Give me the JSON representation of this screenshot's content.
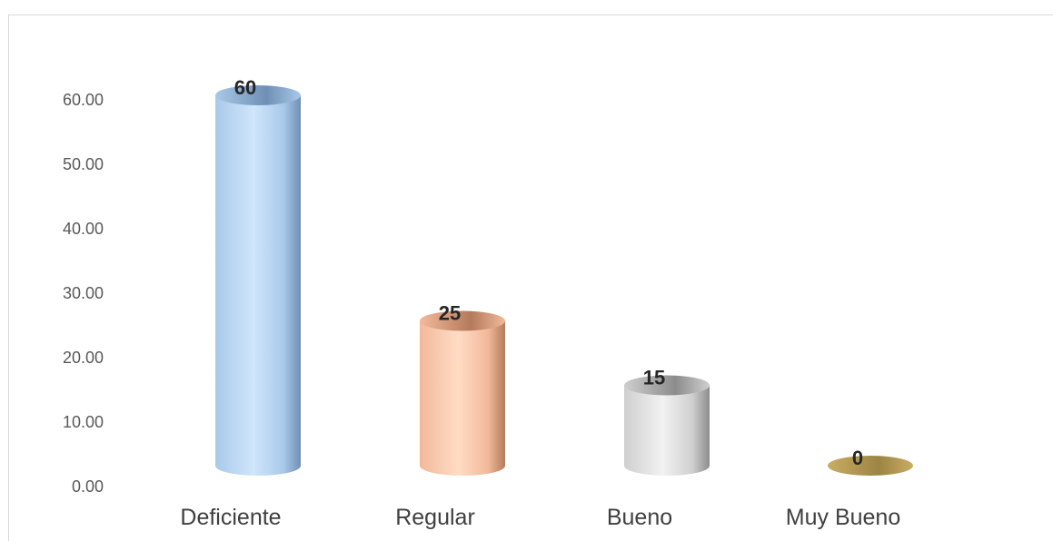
{
  "chart_data": {
    "type": "bar",
    "title": "",
    "xlabel": "",
    "ylabel": "",
    "categories": [
      "Deficiente",
      "Regular",
      "Bueno",
      "Muy Bueno"
    ],
    "values": [
      60,
      25,
      15,
      0
    ],
    "data_labels": [
      "60",
      "25",
      "15",
      "0"
    ],
    "yticks": [
      "0.00",
      "10.00",
      "20.00",
      "30.00",
      "40.00",
      "50.00",
      "60.00"
    ],
    "ylim": [
      0,
      70
    ],
    "grid": false,
    "legend": "none",
    "bar_style": "3d-cylinder",
    "colors": [
      {
        "light": "#cfe6fb",
        "mid": "#a9c9ea",
        "dark": "#6f8fb5"
      },
      {
        "light": "#ffdcc4",
        "mid": "#f2b99b",
        "dark": "#b57a5c"
      },
      {
        "light": "#f2f2f2",
        "mid": "#cfcfcf",
        "dark": "#8c8c8c"
      },
      {
        "light": "#e3cc8a",
        "mid": "#c9ad62",
        "dark": "#9c8444"
      }
    ]
  }
}
